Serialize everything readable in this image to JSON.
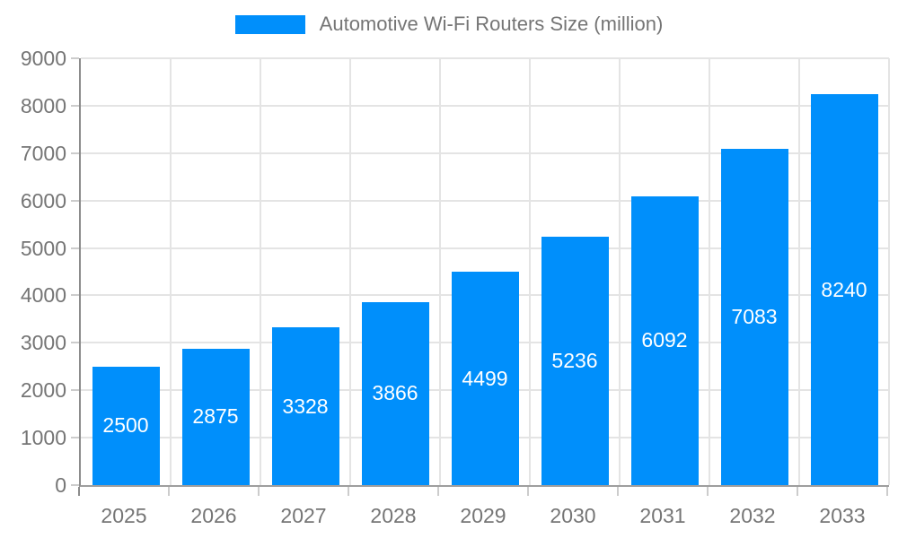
{
  "legend": {
    "label": "Automotive Wi-Fi Routers Size (million)"
  },
  "chart_data": {
    "type": "bar",
    "title": "Automotive Wi-Fi Routers Size (million)",
    "categories": [
      "2025",
      "2026",
      "2027",
      "2028",
      "2029",
      "2030",
      "2031",
      "2032",
      "2033"
    ],
    "series": [
      {
        "name": "Automotive Wi-Fi Routers Size (million)",
        "values": [
          2500,
          2875,
          3328,
          3866,
          4499,
          5236,
          6092,
          7083,
          8240
        ]
      }
    ],
    "xlabel": "",
    "ylabel": "",
    "ylim": [
      0,
      9000
    ],
    "ytick_step": 1000,
    "grid": true,
    "legend_position": "top",
    "value_labels": "inside-center",
    "colors": {
      "bar": "#008FFB",
      "value_label": "#ffffff",
      "axis_text": "#757575",
      "grid_line": "#e4e4e4",
      "axis_line": "#8c8c8c",
      "tick": "#cccccc"
    }
  }
}
